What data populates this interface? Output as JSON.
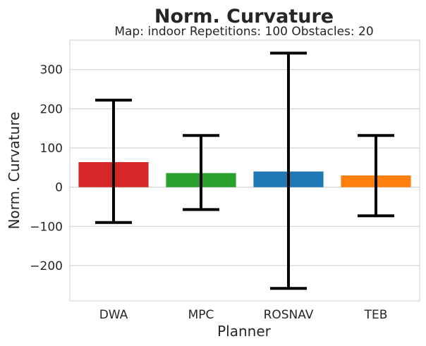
{
  "chart_data": {
    "type": "bar",
    "title": "Norm. Curvature",
    "subtitle": "Map: indoor Repetitions: 100 Obstacles: 20",
    "xlabel": "Planner",
    "ylabel": "Norm. Curvature",
    "categories": [
      "DWA",
      "MPC",
      "ROSNAV",
      "TEB"
    ],
    "values": [
      64,
      36,
      40,
      30
    ],
    "error_low": [
      -90,
      -57,
      -258,
      -73
    ],
    "error_high": [
      222,
      132,
      342,
      132
    ],
    "colors": [
      "#d62728",
      "#2ca02c",
      "#1f77b4",
      "#ff7f0e"
    ],
    "ylim": [
      -290,
      375
    ],
    "yticks": [
      {
        "value": -200,
        "label": "−200"
      },
      {
        "value": -100,
        "label": "−100"
      },
      {
        "value": 0,
        "label": "0"
      },
      {
        "value": 100,
        "label": "100"
      },
      {
        "value": 200,
        "label": "200"
      },
      {
        "value": 300,
        "label": "300"
      }
    ],
    "grid": true,
    "gridColor": "#cccccc",
    "errorColor": "#000000"
  }
}
